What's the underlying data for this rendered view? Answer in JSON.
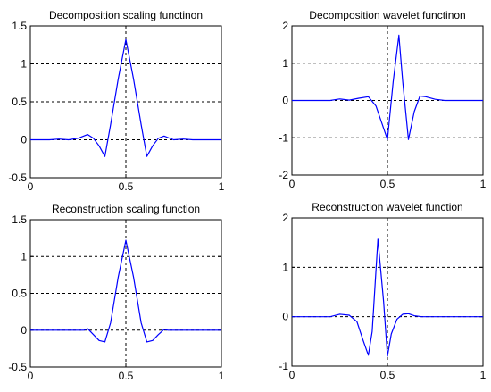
{
  "colors": {
    "line": "#0000ff",
    "axis": "#000000",
    "background": "#ffffff"
  },
  "chart_data": [
    {
      "type": "line",
      "title": "Decomposition scaling functinon",
      "xlim": [
        0,
        1
      ],
      "ylim": [
        -0.5,
        1.5
      ],
      "xticks": [
        0,
        0.5,
        1
      ],
      "xtick_labels": [
        "0",
        "0.5",
        "1"
      ],
      "yticks": [
        -0.5,
        0,
        0.5,
        1,
        1.5
      ],
      "ytick_labels": [
        "-0.5",
        "0",
        "0.5",
        "1",
        "1.5"
      ],
      "grid": true,
      "series": [
        {
          "x": [
            0,
            0.1,
            0.15,
            0.2,
            0.25,
            0.3,
            0.33,
            0.36,
            0.39,
            0.42,
            0.46,
            0.5,
            0.54,
            0.58,
            0.61,
            0.64,
            0.67,
            0.7,
            0.75,
            0.8,
            0.85,
            0.9,
            1
          ],
          "y": [
            0,
            0,
            0.01,
            0,
            0.02,
            0.07,
            0.02,
            -0.08,
            -0.22,
            0.2,
            0.8,
            1.32,
            0.8,
            0.2,
            -0.22,
            -0.08,
            0.02,
            0.05,
            0,
            0.01,
            0,
            0,
            0
          ]
        }
      ]
    },
    {
      "type": "line",
      "title": "Decomposition wavelet functinon",
      "xlim": [
        0,
        1
      ],
      "ylim": [
        -2,
        2
      ],
      "xticks": [
        0,
        0.5,
        1
      ],
      "xtick_labels": [
        "0",
        "0.5",
        "1"
      ],
      "yticks": [
        -2,
        -1,
        0,
        1,
        2
      ],
      "ytick_labels": [
        "-2",
        "-1",
        "0",
        "1",
        "2"
      ],
      "grid": true,
      "series": [
        {
          "x": [
            0,
            0.2,
            0.25,
            0.3,
            0.35,
            0.4,
            0.44,
            0.47,
            0.5,
            0.53,
            0.56,
            0.58,
            0.61,
            0.64,
            0.67,
            0.7,
            0.75,
            0.8,
            1
          ],
          "y": [
            0,
            0,
            0.04,
            0.01,
            0.06,
            0.1,
            -0.15,
            -0.6,
            -1.05,
            0.5,
            1.75,
            0.5,
            -1.05,
            -0.3,
            0.12,
            0.1,
            0.03,
            0,
            0
          ]
        }
      ]
    },
    {
      "type": "line",
      "title": "Reconstruction scaling function",
      "xlim": [
        0,
        1
      ],
      "ylim": [
        -0.5,
        1.5
      ],
      "xticks": [
        0,
        0.5,
        1
      ],
      "xtick_labels": [
        "0",
        "0.5",
        "1"
      ],
      "yticks": [
        -0.5,
        0,
        0.5,
        1,
        1.5
      ],
      "ytick_labels": [
        "-0.5",
        "0",
        "0.5",
        "1",
        "1.5"
      ],
      "grid": true,
      "series": [
        {
          "x": [
            0,
            0.28,
            0.3,
            0.33,
            0.36,
            0.39,
            0.42,
            0.46,
            0.5,
            0.54,
            0.58,
            0.61,
            0.64,
            0.67,
            0.7,
            0.72,
            1
          ],
          "y": [
            0,
            0,
            0.02,
            -0.06,
            -0.14,
            -0.16,
            0.1,
            0.72,
            1.22,
            0.72,
            0.1,
            -0.16,
            -0.14,
            -0.06,
            0.01,
            0,
            0
          ]
        }
      ]
    },
    {
      "type": "line",
      "title": "Reconstruction wavelet function",
      "xlim": [
        0,
        1
      ],
      "ylim": [
        -1,
        2
      ],
      "xticks": [
        0,
        0.5,
        1
      ],
      "xtick_labels": [
        "0",
        "0.5",
        "1"
      ],
      "yticks": [
        -1,
        0,
        1,
        2
      ],
      "ytick_labels": [
        "-1",
        "0",
        "1",
        "2"
      ],
      "grid": true,
      "series": [
        {
          "x": [
            0,
            0.2,
            0.25,
            0.3,
            0.34,
            0.37,
            0.4,
            0.42,
            0.45,
            0.48,
            0.5,
            0.52,
            0.55,
            0.58,
            0.61,
            0.64,
            0.68,
            0.72,
            1
          ],
          "y": [
            0,
            0,
            0.05,
            0.03,
            -0.1,
            -0.45,
            -0.78,
            -0.3,
            1.57,
            0.3,
            -0.8,
            -0.35,
            -0.05,
            0.05,
            0.06,
            0.02,
            0,
            0,
            0
          ]
        }
      ]
    }
  ]
}
